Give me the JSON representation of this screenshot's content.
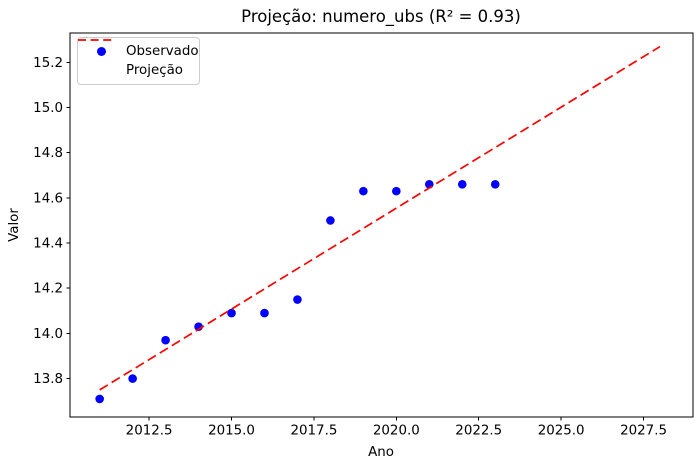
{
  "chart_data": {
    "type": "scatter",
    "title": "Projeção: numero_ubs (R² = 0.93)",
    "xlabel": "Ano",
    "ylabel": "Valor",
    "r_squared": 0.93,
    "xlim": [
      2010.1,
      2029.0
    ],
    "ylim": [
      13.63,
      15.33
    ],
    "grid": false,
    "x_ticks": {
      "values": [
        2012.5,
        2015.0,
        2017.5,
        2020.0,
        2022.5,
        2025.0,
        2027.5
      ],
      "labels": [
        "2012.5",
        "2015.0",
        "2017.5",
        "2020.0",
        "2022.5",
        "2025.0",
        "2027.5"
      ]
    },
    "y_ticks": {
      "values": [
        13.8,
        14.0,
        14.2,
        14.4,
        14.6,
        14.8,
        15.0,
        15.2
      ],
      "labels": [
        "13.8",
        "14.0",
        "14.2",
        "14.4",
        "14.6",
        "14.8",
        "15.0",
        "15.2"
      ]
    },
    "series": [
      {
        "name": "Observado",
        "type": "scatter",
        "color": "#0000ff",
        "x": [
          2011,
          2012,
          2013,
          2014,
          2015,
          2016,
          2017,
          2018,
          2019,
          2020,
          2021,
          2022,
          2023
        ],
        "y": [
          13.71,
          13.8,
          13.97,
          14.03,
          14.09,
          14.09,
          14.15,
          14.5,
          14.63,
          14.63,
          14.66,
          14.66,
          14.66
        ]
      },
      {
        "name": "Projeção",
        "type": "line",
        "linestyle": "dashed",
        "color": "#ff0000",
        "x": [
          2011,
          2028
        ],
        "y": [
          13.75,
          15.27
        ]
      }
    ],
    "legend": {
      "position": "upper left",
      "entries": [
        "Observado",
        "Projeção"
      ]
    },
    "colors": {
      "axes_edge": "#000000",
      "text": "#000000",
      "legend_border": "#cccccc"
    }
  }
}
